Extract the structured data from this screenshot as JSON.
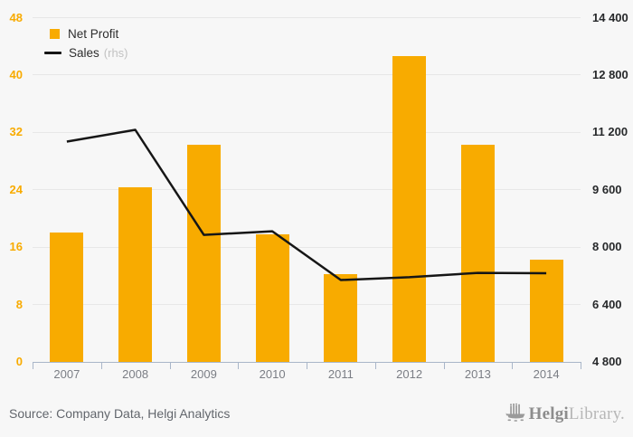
{
  "chart_data": {
    "type": "bar",
    "title": "",
    "categories": [
      "2007",
      "2008",
      "2009",
      "2010",
      "2011",
      "2012",
      "2013",
      "2014"
    ],
    "series": [
      {
        "name": "Net Profit",
        "chart_type": "bar",
        "axis": "left",
        "values": [
          18.1,
          24.4,
          30.3,
          17.8,
          12.2,
          42.6,
          30.3,
          14.3
        ]
      },
      {
        "name": "Sales",
        "legend_suffix": "(rhs)",
        "chart_type": "line",
        "axis": "right",
        "values": [
          10930,
          11260,
          8330,
          8430,
          7070,
          7150,
          7270,
          7260
        ]
      }
    ],
    "left_axis": {
      "min": 0,
      "max": 48,
      "tick_labels": [
        "0",
        "8",
        "16",
        "24",
        "32",
        "40",
        "48"
      ]
    },
    "right_axis": {
      "min": 4800,
      "max": 14400,
      "tick_labels": [
        "4 800",
        "6 400",
        "8 000",
        "9 600",
        "11 200",
        "12 800",
        "14 400"
      ]
    },
    "grid": true,
    "legend_position": "top-left"
  },
  "colors": {
    "bar": "#f8ab00",
    "line": "#161616",
    "left_axis_labels": "#f8ab00",
    "right_axis_labels": "#27292b",
    "axis_line": "#a9b6c9",
    "gridline": "#e7e7e7",
    "background": "#f7f7f7"
  },
  "footer": {
    "source_label": "Source: Company Data, Helgi Analytics",
    "brand_primary": "Helgi",
    "brand_secondary": "Library."
  }
}
